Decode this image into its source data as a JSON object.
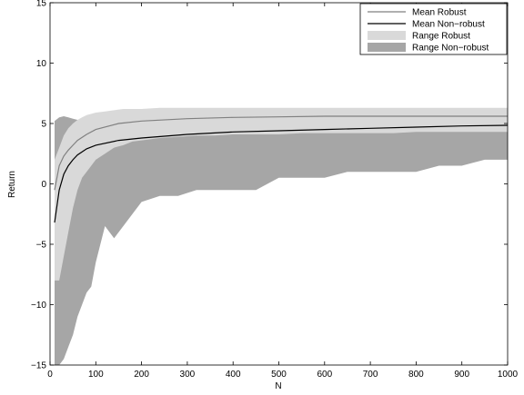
{
  "chart_data": {
    "type": "area",
    "title": "",
    "xlabel": "N",
    "ylabel": "Return",
    "xlim": [
      0,
      1000
    ],
    "ylim": [
      -15,
      15
    ],
    "xticks": [
      0,
      100,
      200,
      300,
      400,
      500,
      600,
      700,
      800,
      900,
      1000
    ],
    "yticks": [
      -15,
      -10,
      -5,
      0,
      5,
      10,
      15
    ],
    "grid": false,
    "legend_position": "top-right",
    "legend": [
      {
        "label": "Mean Robust",
        "kind": "line",
        "color": "#808080"
      },
      {
        "label": "Mean Non−robust",
        "kind": "line",
        "color": "#000000"
      },
      {
        "label": "Range Robust",
        "kind": "patch",
        "color": "#d9d9d9"
      },
      {
        "label": "Range Non−robust",
        "kind": "patch",
        "color": "#a6a6a6"
      }
    ],
    "series": [
      {
        "name": "Range Non−robust",
        "kind": "range",
        "color": "#a6a6a6",
        "x": [
          10,
          20,
          30,
          40,
          50,
          60,
          70,
          80,
          90,
          100,
          120,
          140,
          160,
          180,
          200,
          240,
          280,
          320,
          360,
          400,
          450,
          500,
          550,
          600,
          650,
          700,
          750,
          800,
          850,
          900,
          950,
          1000
        ],
        "upper": [
          5.2,
          5.5,
          5.6,
          5.5,
          5.4,
          5.3,
          5.2,
          5.1,
          5.0,
          5.2,
          5.0,
          5.0,
          5.1,
          5.0,
          5.0,
          4.9,
          4.9,
          4.8,
          4.9,
          4.8,
          4.9,
          4.8,
          4.9,
          4.8,
          4.8,
          4.8,
          4.8,
          4.8,
          4.8,
          4.8,
          4.8,
          4.8
        ],
        "lower": [
          -15.0,
          -15.0,
          -14.5,
          -13.5,
          -12.5,
          -11.0,
          -10.0,
          -9.0,
          -8.5,
          -6.5,
          -3.5,
          -4.5,
          -3.5,
          -2.5,
          -1.5,
          -1.0,
          -1.0,
          -0.5,
          -0.5,
          -0.5,
          -0.5,
          0.5,
          0.5,
          0.5,
          1.0,
          1.0,
          1.0,
          1.0,
          1.5,
          1.5,
          2.0,
          2.0
        ]
      },
      {
        "name": "Range Robust",
        "kind": "range",
        "color": "#d9d9d9",
        "x": [
          10,
          20,
          30,
          40,
          50,
          60,
          70,
          80,
          90,
          100,
          120,
          140,
          160,
          180,
          200,
          240,
          280,
          320,
          360,
          400,
          450,
          500,
          550,
          600,
          650,
          700,
          750,
          800,
          850,
          900,
          950,
          1000
        ],
        "upper": [
          2.0,
          3.0,
          4.0,
          4.6,
          5.0,
          5.3,
          5.5,
          5.7,
          5.8,
          5.9,
          6.0,
          6.1,
          6.2,
          6.2,
          6.2,
          6.3,
          6.3,
          6.3,
          6.3,
          6.3,
          6.3,
          6.3,
          6.3,
          6.3,
          6.3,
          6.3,
          6.3,
          6.3,
          6.3,
          6.3,
          6.3,
          6.3
        ],
        "lower": [
          -8.0,
          -8.0,
          -6.0,
          -4.0,
          -2.0,
          -0.5,
          0.5,
          1.0,
          1.5,
          2.0,
          2.5,
          3.0,
          3.2,
          3.5,
          3.6,
          3.8,
          3.9,
          4.0,
          4.0,
          4.1,
          4.1,
          4.1,
          4.2,
          4.2,
          4.2,
          4.2,
          4.2,
          4.3,
          4.3,
          4.3,
          4.3,
          4.3
        ]
      },
      {
        "name": "Mean Robust",
        "kind": "line",
        "color": "#808080",
        "x": [
          10,
          20,
          30,
          40,
          50,
          60,
          80,
          100,
          150,
          200,
          300,
          400,
          500,
          600,
          700,
          800,
          900,
          1000
        ],
        "y": [
          -0.5,
          1.5,
          2.3,
          2.8,
          3.2,
          3.6,
          4.1,
          4.5,
          5.0,
          5.2,
          5.4,
          5.5,
          5.55,
          5.6,
          5.6,
          5.6,
          5.6,
          5.6
        ]
      },
      {
        "name": "Mean Non−robust",
        "kind": "line",
        "color": "#000000",
        "x": [
          10,
          20,
          30,
          40,
          50,
          60,
          80,
          100,
          150,
          200,
          300,
          400,
          500,
          600,
          700,
          800,
          900,
          1000
        ],
        "y": [
          -3.2,
          -0.5,
          0.8,
          1.5,
          2.0,
          2.4,
          2.9,
          3.2,
          3.6,
          3.8,
          4.1,
          4.3,
          4.4,
          4.5,
          4.6,
          4.7,
          4.8,
          4.85
        ]
      }
    ]
  }
}
